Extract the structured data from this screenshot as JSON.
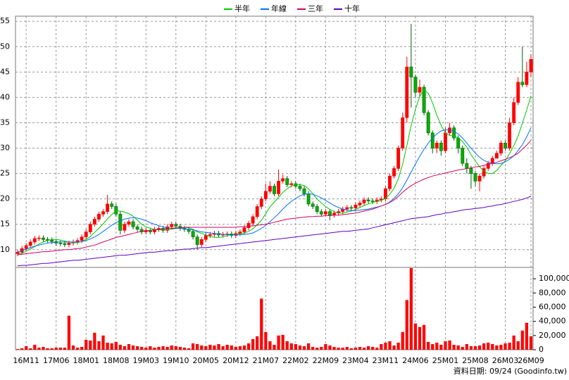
{
  "chart_data": {
    "type": "candlestick",
    "categories": [
      null,
      null,
      "16M11",
      null,
      null,
      null,
      null,
      null,
      null,
      "17M06",
      null,
      null,
      null,
      null,
      null,
      null,
      "18M01",
      null,
      null,
      null,
      null,
      null,
      null,
      "18M08",
      null,
      null,
      null,
      null,
      null,
      null,
      "19M03",
      null,
      null,
      null,
      null,
      null,
      null,
      "19M10",
      null,
      null,
      null,
      null,
      null,
      null,
      "20M05",
      null,
      null,
      null,
      null,
      null,
      null,
      "20M12",
      null,
      null,
      null,
      null,
      null,
      null,
      "21M07",
      null,
      null,
      null,
      null,
      null,
      null,
      "22M02",
      null,
      null,
      null,
      null,
      null,
      null,
      "22M09",
      null,
      null,
      null,
      null,
      null,
      null,
      "23M04",
      null,
      null,
      null,
      null,
      null,
      null,
      "23M11",
      null,
      null,
      null,
      null,
      null,
      null,
      "24M06",
      null,
      null,
      null,
      null,
      null,
      null,
      "25M01",
      null,
      null,
      null,
      null,
      null,
      null,
      "25M08",
      null,
      null,
      null,
      null,
      null,
      null,
      "26M03",
      null,
      null,
      null,
      null,
      null,
      "26M09"
    ],
    "open": [
      9.2,
      9.5,
      10.2,
      10.8,
      11.5,
      12.2,
      12.3,
      12.0,
      11.9,
      11.6,
      11.3,
      11.2,
      11.0,
      11.3,
      11.5,
      11.8,
      12.5,
      13.5,
      15.0,
      16.0,
      17.0,
      17.5,
      19.0,
      18.5,
      17.0,
      13.8,
      15.0,
      15.5,
      14.5,
      14.0,
      13.5,
      13.8,
      13.5,
      14.0,
      14.2,
      13.8,
      14.5,
      15.0,
      14.6,
      14.2,
      14.0,
      13.6,
      12.5,
      11.0,
      12.0,
      12.8,
      13.0,
      13.2,
      12.9,
      13.0,
      13.1,
      12.8,
      13.2,
      13.5,
      14.3,
      15.2,
      16.5,
      18.5,
      20.0,
      21.5,
      22.5,
      21.0,
      23.5,
      24.0,
      22.8,
      23.0,
      22.5,
      22.0,
      21.0,
      19.0,
      18.5,
      17.5,
      17.0,
      17.5,
      16.8,
      17.2,
      17.5,
      18.0,
      18.3,
      18.2,
      18.8,
      19.2,
      19.8,
      19.6,
      19.5,
      19.8,
      20.0,
      22.0,
      24.5,
      26.0,
      30.0,
      36.0,
      46.0,
      44.0,
      41.0,
      42.0,
      37.0,
      33.0,
      30.0,
      31.0,
      29.5,
      33.0,
      34.0,
      32.0,
      30.0,
      27.0,
      26.0,
      25.0,
      23.5,
      24.5,
      26.0,
      27.0,
      28.0,
      29.0,
      31.0,
      30.0,
      35.0,
      39.0,
      43.0,
      42.5,
      45.0
    ],
    "high": [
      10.0,
      10.7,
      11.3,
      12.0,
      12.7,
      12.8,
      12.8,
      12.5,
      12.4,
      12.1,
      11.8,
      11.7,
      11.8,
      12.0,
      12.3,
      13.0,
      14.0,
      15.5,
      16.5,
      17.5,
      18.0,
      20.8,
      19.5,
      19.0,
      17.5,
      15.5,
      16.0,
      16.0,
      15.0,
      14.5,
      14.3,
      14.3,
      14.5,
      14.7,
      14.7,
      15.0,
      15.5,
      15.5,
      15.1,
      14.7,
      14.5,
      14.1,
      13.0,
      12.5,
      13.3,
      13.5,
      13.7,
      13.7,
      13.5,
      13.6,
      13.6,
      13.7,
      14.0,
      14.8,
      15.7,
      17.0,
      19.0,
      20.5,
      23.0,
      23.5,
      23.0,
      25.8,
      24.8,
      24.5,
      23.5,
      23.5,
      23.0,
      22.5,
      21.5,
      19.5,
      19.0,
      18.0,
      18.0,
      18.0,
      17.7,
      18.0,
      18.5,
      18.8,
      18.8,
      19.3,
      19.7,
      20.3,
      20.3,
      20.1,
      20.3,
      20.5,
      22.5,
      25.0,
      26.5,
      30.5,
      37.0,
      48.0,
      54.5,
      44.5,
      43.5,
      42.5,
      37.5,
      33.5,
      31.5,
      31.5,
      34.0,
      35.0,
      34.5,
      32.5,
      30.5,
      28.0,
      26.5,
      25.5,
      25.0,
      26.5,
      27.5,
      28.5,
      29.5,
      31.5,
      31.5,
      36.0,
      40.0,
      44.0,
      50.0,
      47.0,
      48.5
    ],
    "low": [
      8.7,
      9.0,
      9.7,
      10.3,
      11.0,
      11.7,
      11.5,
      11.4,
      11.1,
      10.8,
      10.7,
      10.5,
      10.5,
      10.8,
      11.0,
      11.3,
      12.0,
      13.0,
      14.5,
      15.5,
      16.5,
      17.0,
      18.0,
      16.5,
      13.0,
      13.3,
      14.5,
      14.0,
      13.5,
      13.0,
      13.0,
      13.0,
      13.0,
      13.5,
      13.3,
      13.3,
      14.0,
      14.1,
      13.7,
      13.5,
      13.1,
      12.0,
      10.0,
      10.5,
      11.5,
      12.3,
      12.5,
      12.4,
      12.4,
      12.5,
      12.3,
      12.3,
      12.7,
      13.0,
      13.8,
      14.7,
      16.0,
      18.0,
      19.5,
      21.0,
      20.5,
      20.5,
      23.0,
      22.3,
      22.3,
      22.0,
      21.5,
      20.5,
      18.5,
      18.0,
      17.0,
      16.5,
      16.5,
      15.8,
      16.3,
      16.7,
      17.0,
      17.5,
      17.7,
      17.7,
      18.3,
      18.7,
      19.1,
      19.0,
      19.0,
      19.3,
      19.5,
      21.5,
      24.0,
      25.5,
      29.5,
      35.0,
      38.0,
      40.0,
      40.0,
      36.5,
      32.5,
      29.0,
      29.0,
      28.5,
      29.0,
      32.5,
      31.5,
      29.0,
      26.5,
      25.0,
      22.0,
      22.5,
      21.5,
      24.0,
      25.5,
      26.5,
      28.0,
      28.5,
      29.5,
      29.5,
      34.5,
      38.5,
      42.0,
      42.0,
      44.0
    ],
    "close": [
      9.5,
      10.2,
      10.8,
      11.5,
      12.2,
      12.3,
      12.0,
      11.9,
      11.6,
      11.3,
      11.2,
      11.0,
      11.3,
      11.5,
      11.8,
      12.5,
      13.5,
      15.0,
      16.0,
      17.0,
      17.5,
      19.0,
      18.5,
      17.0,
      13.8,
      15.0,
      15.5,
      14.5,
      14.0,
      13.5,
      13.8,
      13.5,
      14.0,
      14.2,
      13.8,
      14.5,
      15.0,
      14.6,
      14.2,
      14.0,
      13.6,
      12.5,
      11.0,
      12.0,
      12.8,
      13.0,
      13.2,
      12.9,
      13.0,
      13.1,
      12.8,
      13.2,
      13.5,
      14.3,
      15.2,
      16.5,
      18.5,
      20.0,
      21.5,
      22.5,
      21.0,
      23.5,
      24.0,
      22.8,
      23.0,
      22.5,
      22.0,
      21.0,
      19.0,
      18.5,
      17.5,
      17.0,
      17.5,
      16.8,
      17.2,
      17.5,
      18.0,
      18.3,
      18.2,
      18.8,
      19.2,
      19.8,
      19.6,
      19.5,
      19.8,
      20.0,
      22.0,
      24.5,
      26.0,
      30.0,
      36.0,
      46.0,
      44.0,
      41.0,
      42.0,
      37.0,
      33.0,
      30.0,
      31.0,
      29.5,
      33.0,
      34.0,
      32.0,
      30.0,
      27.0,
      26.0,
      25.0,
      23.5,
      24.5,
      26.0,
      27.0,
      28.0,
      29.0,
      31.0,
      30.0,
      35.0,
      39.0,
      43.0,
      42.5,
      45.0,
      47.5
    ],
    "up_color": "#ff0000",
    "down_color": "#00b000",
    "series": [
      {
        "name": "半年",
        "color": "#00c800",
        "values": [
          9.0,
          9.3,
          9.7,
          10.1,
          10.6,
          11.1,
          11.5,
          11.8,
          12.0,
          12.0,
          11.9,
          11.7,
          11.5,
          11.4,
          11.4,
          11.6,
          12.0,
          12.6,
          13.4,
          14.2,
          15.1,
          16.1,
          16.9,
          17.6,
          17.6,
          17.4,
          17.1,
          16.6,
          15.8,
          15.0,
          14.5,
          14.2,
          14.0,
          13.9,
          13.9,
          13.9,
          14.0,
          14.2,
          14.3,
          14.4,
          14.3,
          14.0,
          13.5,
          13.2,
          12.9,
          12.6,
          12.4,
          12.4,
          12.5,
          12.8,
          13.0,
          13.0,
          13.1,
          13.3,
          13.6,
          14.1,
          14.9,
          15.8,
          17.1,
          18.4,
          19.4,
          20.3,
          21.3,
          22.0,
          22.5,
          22.8,
          22.8,
          22.6,
          22.0,
          21.0,
          20.0,
          19.2,
          18.5,
          17.9,
          17.5,
          17.2,
          17.2,
          17.4,
          17.6,
          17.9,
          18.3,
          18.7,
          19.0,
          19.3,
          19.5,
          19.7,
          20.1,
          20.9,
          22.1,
          24.0,
          26.8,
          30.5,
          34.5,
          37.7,
          40.2,
          41.5,
          40.8,
          38.9,
          36.5,
          34.5,
          33.0,
          32.5,
          32.4,
          32.0,
          31.3,
          30.2,
          28.7,
          27.5,
          26.3,
          25.5,
          25.0,
          25.0,
          25.6,
          26.6,
          27.5,
          28.9,
          30.5,
          32.4,
          34.9,
          37.5,
          40.3
        ]
      },
      {
        "name": "年線",
        "color": "#0070ff",
        "values": [
          9.5,
          9.8,
          10.1,
          10.4,
          10.7,
          10.9,
          11.1,
          11.3,
          11.4,
          11.5,
          11.5,
          11.5,
          11.5,
          11.5,
          11.5,
          11.6,
          11.8,
          12.1,
          12.5,
          13.0,
          13.6,
          14.2,
          14.8,
          15.3,
          15.7,
          16.0,
          16.2,
          16.3,
          16.2,
          16.0,
          15.7,
          15.3,
          15.0,
          14.7,
          14.5,
          14.3,
          14.2,
          14.2,
          14.2,
          14.1,
          14.0,
          13.9,
          13.7,
          13.5,
          13.4,
          13.3,
          13.2,
          13.1,
          13.0,
          13.0,
          13.0,
          12.9,
          12.9,
          13.0,
          13.1,
          13.3,
          13.7,
          14.2,
          14.8,
          15.5,
          16.3,
          17.1,
          18.0,
          18.8,
          19.5,
          20.1,
          20.6,
          20.9,
          21.0,
          20.9,
          20.6,
          20.2,
          19.7,
          19.2,
          18.7,
          18.3,
          18.0,
          17.8,
          17.7,
          17.7,
          17.8,
          17.9,
          18.0,
          18.2,
          18.4,
          18.6,
          18.9,
          19.4,
          20.1,
          21.0,
          22.2,
          23.7,
          25.3,
          26.9,
          28.4,
          29.8,
          31.0,
          32.0,
          32.8,
          33.4,
          33.6,
          33.6,
          33.3,
          32.8,
          32.0,
          31.0,
          30.0,
          29.0,
          28.2,
          27.6,
          27.2,
          27.0,
          26.9,
          27.0,
          27.3,
          27.8,
          28.5,
          29.5,
          30.7,
          32.2,
          34.0
        ]
      },
      {
        "name": "三年",
        "color": "#d00060",
        "values": [
          9.0,
          9.1,
          9.2,
          9.3,
          9.4,
          9.5,
          9.6,
          9.6,
          9.7,
          9.8,
          9.9,
          10.0,
          10.0,
          10.1,
          10.2,
          10.3,
          10.5,
          10.7,
          10.9,
          11.2,
          11.5,
          11.8,
          12.1,
          12.4,
          12.6,
          12.8,
          13.0,
          13.2,
          13.4,
          13.6,
          13.7,
          13.8,
          13.9,
          14.0,
          14.1,
          14.2,
          14.2,
          14.3,
          14.3,
          14.4,
          14.4,
          14.4,
          14.4,
          14.4,
          14.4,
          14.4,
          14.4,
          14.4,
          14.4,
          14.4,
          14.4,
          14.4,
          14.5,
          14.5,
          14.6,
          14.7,
          14.8,
          14.9,
          15.0,
          15.2,
          15.4,
          15.6,
          15.8,
          16.0,
          16.1,
          16.2,
          16.3,
          16.4,
          16.5,
          16.5,
          16.6,
          16.6,
          16.7,
          16.7,
          16.8,
          16.8,
          16.9,
          17.0,
          17.1,
          17.2,
          17.4,
          17.6,
          17.8,
          18.0,
          18.3,
          18.6,
          18.9,
          19.3,
          19.8,
          20.5,
          21.3,
          22.0,
          22.6,
          23.1,
          23.5,
          23.9,
          24.2,
          24.5,
          24.7,
          24.9,
          25.1,
          25.3,
          25.5,
          25.7,
          25.8,
          26.0,
          26.1,
          26.3,
          26.4,
          26.6,
          26.8,
          27.0,
          27.2,
          27.5,
          27.8,
          28.1,
          28.5,
          29.0,
          29.8,
          30.6,
          31.5
        ]
      },
      {
        "name": "十年",
        "color": "#6000c0",
        "values": [
          6.8,
          6.9,
          6.9,
          7.0,
          7.1,
          7.2,
          7.3,
          7.3,
          7.4,
          7.5,
          7.6,
          7.7,
          7.8,
          7.9,
          7.9,
          8.0,
          8.1,
          8.2,
          8.3,
          8.4,
          8.5,
          8.6,
          8.7,
          8.8,
          8.9,
          8.9,
          9.0,
          9.1,
          9.2,
          9.3,
          9.4,
          9.5,
          9.5,
          9.6,
          9.7,
          9.8,
          9.8,
          9.9,
          10.0,
          10.1,
          10.1,
          10.2,
          10.3,
          10.4,
          10.4,
          10.5,
          10.6,
          10.7,
          10.8,
          10.9,
          11.0,
          11.1,
          11.2,
          11.3,
          11.4,
          11.5,
          11.6,
          11.7,
          11.8,
          11.9,
          12.0,
          12.1,
          12.2,
          12.3,
          12.4,
          12.5,
          12.6,
          12.7,
          12.8,
          12.9,
          13.0,
          13.1,
          13.2,
          13.3,
          13.4,
          13.5,
          13.6,
          13.6,
          13.7,
          13.8,
          13.9,
          14.0,
          14.1,
          14.3,
          14.5,
          14.7,
          14.9,
          15.1,
          15.3,
          15.5,
          15.7,
          15.9,
          16.1,
          16.2,
          16.3,
          16.4,
          16.5,
          16.7,
          16.9,
          17.0,
          17.2,
          17.3,
          17.5,
          17.6,
          17.8,
          17.9,
          18.0,
          18.1,
          18.2,
          18.3,
          18.5,
          18.6,
          18.8,
          18.9,
          19.1,
          19.3,
          19.5,
          19.7,
          19.9,
          20.2,
          20.5
        ]
      }
    ],
    "ylim": [
      6.5,
      56
    ],
    "yticks": [
      10,
      15,
      20,
      25,
      30,
      35,
      40,
      45,
      50,
      55
    ],
    "grid": true,
    "legend": "top",
    "volume": {
      "type": "bar",
      "color": "#ff0000",
      "ylim": [
        0,
        116000
      ],
      "yticks": [
        {
          "value": 0,
          "label": "0"
        },
        {
          "value": 20000,
          "label": "20,000"
        },
        {
          "value": 40000,
          "label": "40,000"
        },
        {
          "value": 60000,
          "label": "60,000"
        },
        {
          "value": 80000,
          "label": "80,000"
        },
        {
          "value": 100000,
          "label": "100,000"
        }
      ],
      "values": [
        1000,
        2000,
        5000,
        2000,
        7000,
        3000,
        4000,
        2000,
        2000,
        3000,
        3000,
        3000,
        48000,
        6000,
        3000,
        4000,
        14000,
        13000,
        24000,
        12000,
        20000,
        10000,
        9000,
        11000,
        7000,
        5000,
        8000,
        6000,
        5000,
        4000,
        3000,
        5000,
        3000,
        4000,
        5000,
        4000,
        6000,
        5000,
        4000,
        3000,
        2000,
        9000,
        8000,
        6000,
        5000,
        7000,
        6000,
        8000,
        5000,
        7000,
        6000,
        4000,
        5000,
        6000,
        9000,
        15000,
        19000,
        72000,
        25000,
        12000,
        7000,
        20000,
        21000,
        12000,
        9000,
        8000,
        6000,
        5000,
        9000,
        4000,
        3000,
        4000,
        8000,
        6000,
        4000,
        3000,
        3000,
        4000,
        2000,
        3000,
        4000,
        3000,
        5000,
        4000,
        3000,
        8000,
        10000,
        12000,
        6000,
        10000,
        25000,
        70000,
        115000,
        37000,
        32000,
        35000,
        11000,
        8000,
        10000,
        7000,
        12000,
        13000,
        7000,
        6000,
        4000,
        8000,
        5000,
        5000,
        6000,
        9000,
        10000,
        8000,
        6000,
        7000,
        9000,
        10000,
        20000,
        12000,
        27000,
        38000,
        19000
      ]
    },
    "source": "資料日期: 09/24 (Goodinfo.tw)"
  }
}
